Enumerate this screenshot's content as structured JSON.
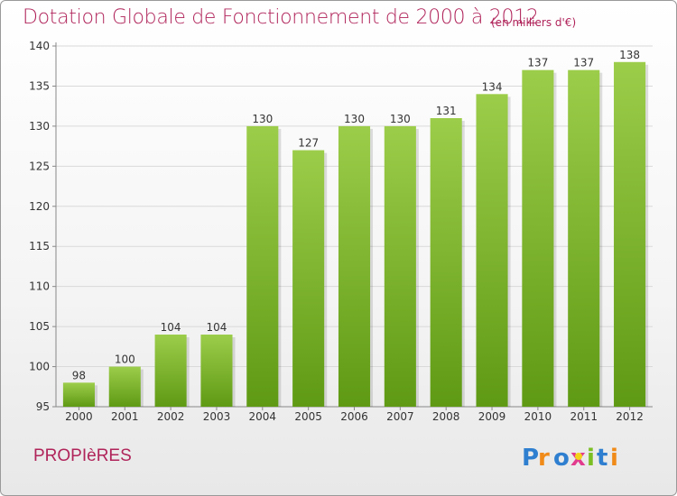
{
  "header": {
    "title": "Dotation Globale de Fonctionnement de 2000 à 2012",
    "unit": "(en milliers d'€)"
  },
  "footer": {
    "commune": "PROPIèRES",
    "logo_text": "Proxiti"
  },
  "colors": {
    "title": "#b0245a",
    "bar_top": "#9ccd4a",
    "bar_bottom": "#5f9a14",
    "grid": "#d9d9d9"
  },
  "chart_data": {
    "type": "bar",
    "categories": [
      "2000",
      "2001",
      "2002",
      "2003",
      "2004",
      "2005",
      "2006",
      "2007",
      "2008",
      "2009",
      "2010",
      "2011",
      "2012"
    ],
    "values": [
      98,
      100,
      104,
      104,
      130,
      127,
      130,
      130,
      131,
      134,
      137,
      137,
      138
    ],
    "title": "Dotation Globale de Fonctionnement de 2000 à 2012",
    "subtitle": "(en milliers d'€)",
    "ylim": [
      95,
      140
    ],
    "yticks": [
      95,
      100,
      105,
      110,
      115,
      120,
      125,
      130,
      135,
      140
    ],
    "grid": true,
    "legend": "none"
  }
}
